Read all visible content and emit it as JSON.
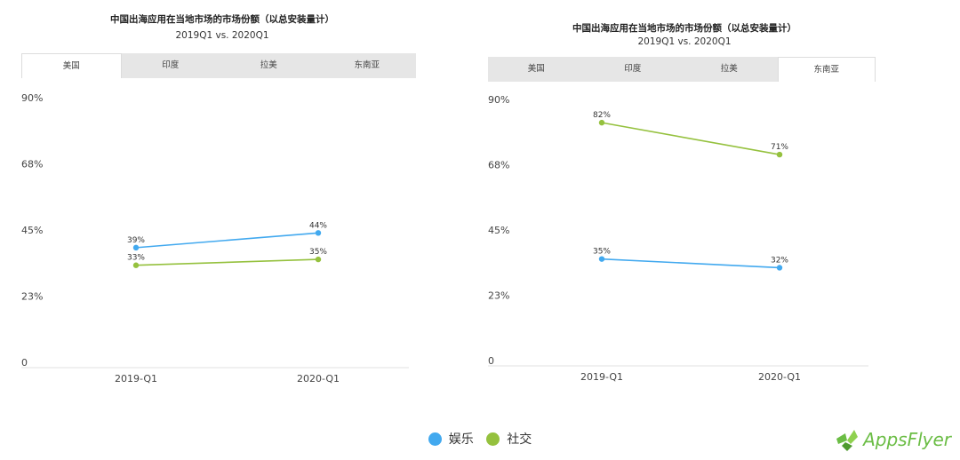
{
  "colors": {
    "entertainment": "#42a9ef",
    "social": "#95c13e",
    "tab_bg": "#e6e6e6",
    "axis": "#e0e0e0"
  },
  "legend": {
    "entertainment": "娱乐",
    "social": "社交"
  },
  "logo": {
    "text": "AppsFlyer"
  },
  "chart_data": [
    {
      "type": "line",
      "title": "中国出海应用在当地市场的市场份额（以总安装量计）",
      "subtitle": "2019Q1 vs. 2020Q1",
      "tabs": [
        "美国",
        "印度",
        "拉美",
        "东南亚"
      ],
      "active_tab": 0,
      "categories": [
        "2019-Q1",
        "2020-Q1"
      ],
      "y_ticks": [
        "90%",
        "68%",
        "45%",
        "23%",
        "0"
      ],
      "ylim": [
        0,
        90
      ],
      "series": [
        {
          "name": "娱乐",
          "values": [
            39,
            44
          ],
          "labels": [
            "39%",
            "44%"
          ]
        },
        {
          "name": "社交",
          "values": [
            33,
            35
          ],
          "labels": [
            "33%",
            "35%"
          ]
        }
      ]
    },
    {
      "type": "line",
      "title": "中国出海应用在当地市场的市场份额（以总安装量计）",
      "subtitle": "2019Q1 vs. 2020Q1",
      "tabs": [
        "美国",
        "印度",
        "拉美",
        "东南亚"
      ],
      "active_tab": 3,
      "categories": [
        "2019-Q1",
        "2020-Q1"
      ],
      "y_ticks": [
        "90%",
        "68%",
        "45%",
        "23%",
        "0"
      ],
      "ylim": [
        0,
        90
      ],
      "series": [
        {
          "name": "娱乐",
          "values": [
            35,
            32
          ],
          "labels": [
            "35%",
            "32%"
          ]
        },
        {
          "name": "社交",
          "values": [
            82,
            71
          ],
          "labels": [
            "82%",
            "71%"
          ]
        }
      ]
    }
  ]
}
